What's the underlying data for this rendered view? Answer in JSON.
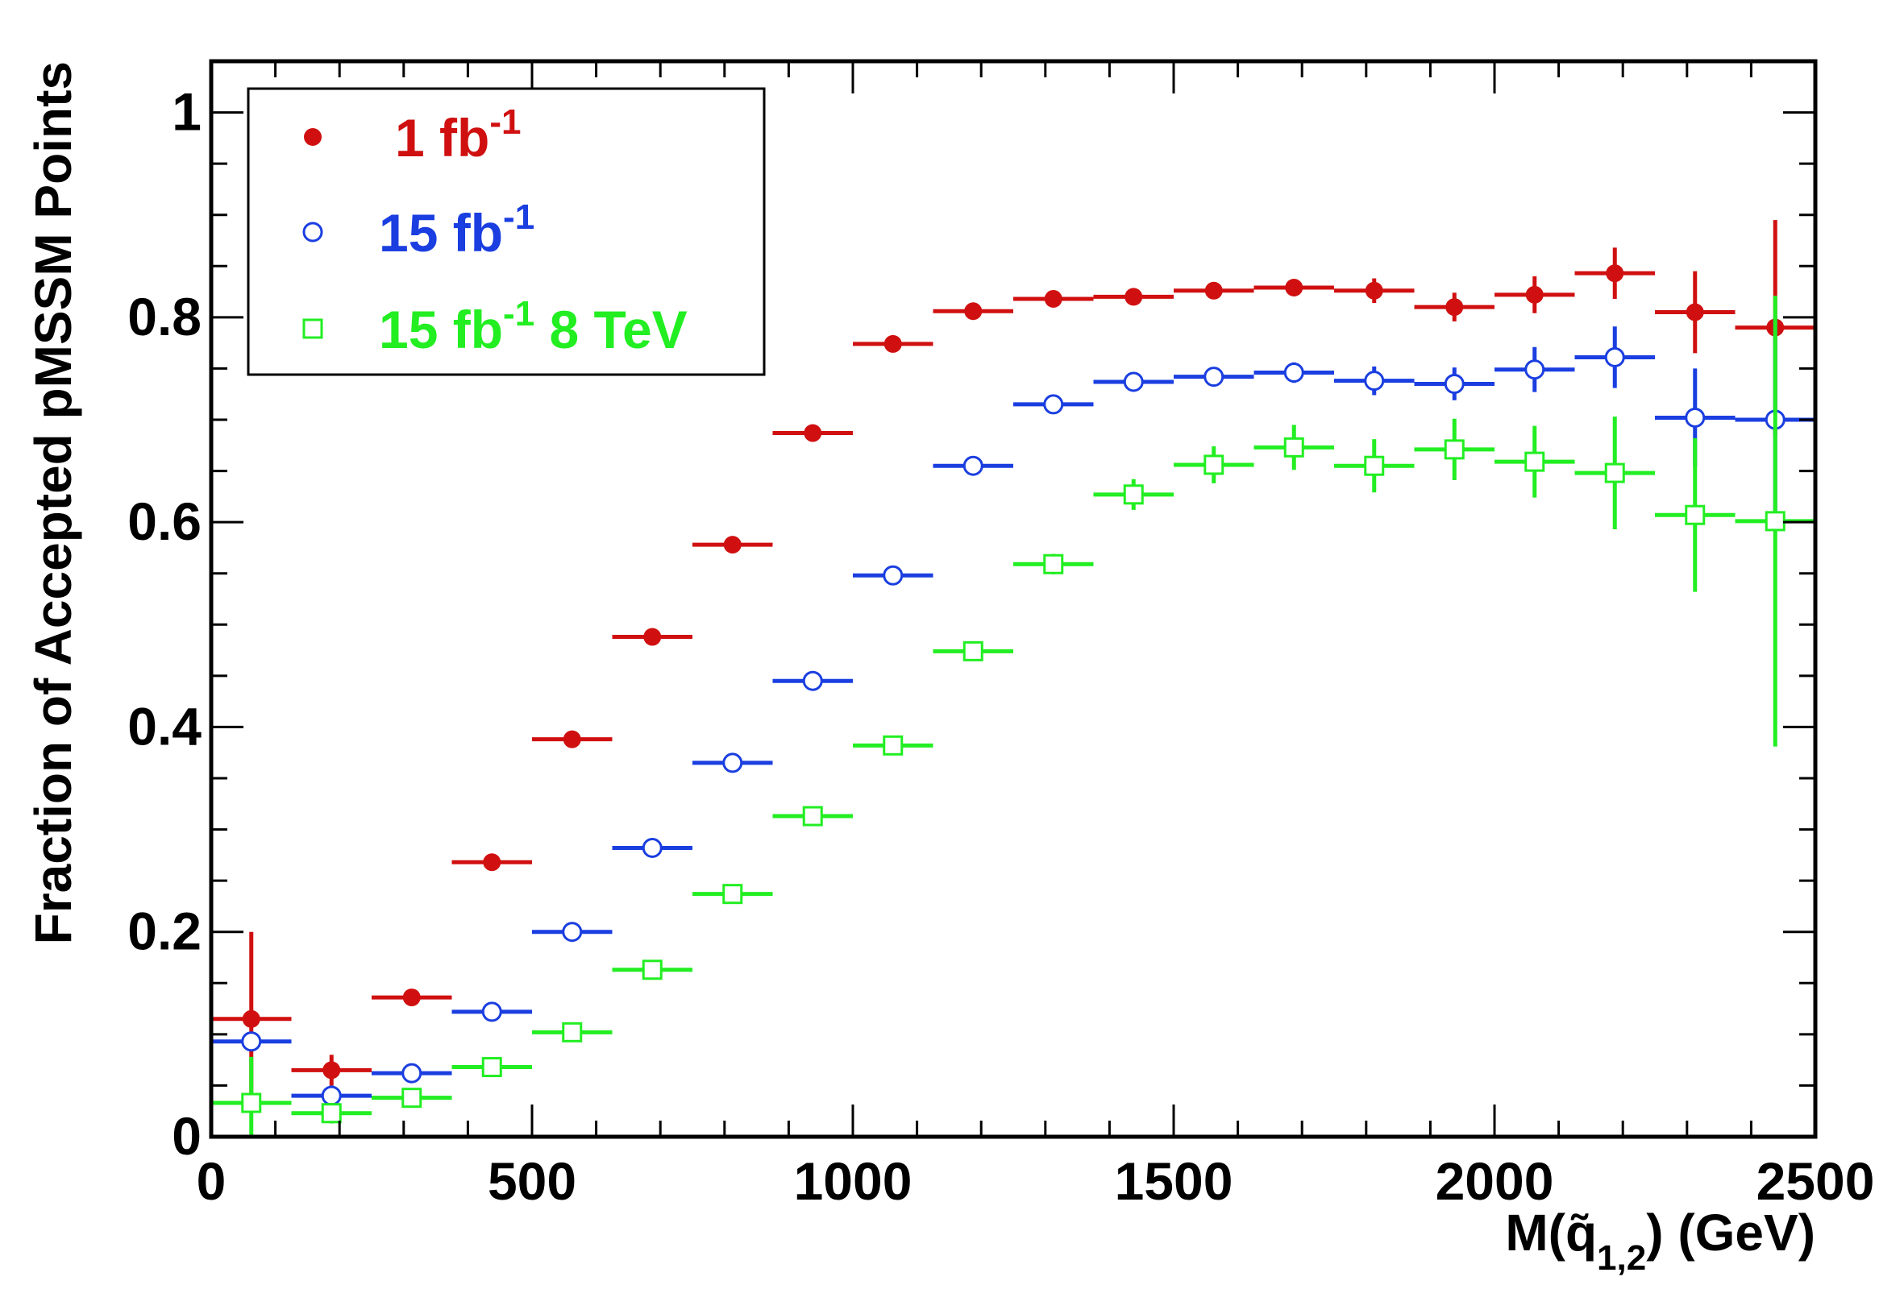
{
  "chart_data": {
    "type": "scatter",
    "title": "",
    "xlabel": "M(q̃",
    "xlabel_sub": "1,2",
    "xlabel_tail": ") (GeV)",
    "ylabel": "Fraction of Accepted pMSSM Points",
    "xlim": [
      0,
      2500
    ],
    "ylim": [
      0,
      1.05
    ],
    "x_ticks": [
      0,
      500,
      1000,
      1500,
      2000,
      2500
    ],
    "x_tick_labels": [
      "0",
      "500",
      "1000",
      "1500",
      "2000",
      "2500"
    ],
    "y_ticks": [
      0,
      0.2,
      0.4,
      0.6,
      0.8,
      1
    ],
    "y_tick_labels": [
      "0",
      "0.2",
      "0.4",
      "0.6",
      "0.8",
      "1"
    ],
    "grid": false,
    "legend_position": "top-left",
    "bin_half_width": 62.5,
    "x": [
      62.5,
      187.5,
      312.5,
      437.5,
      562.5,
      687.5,
      812.5,
      937.5,
      1062.5,
      1187.5,
      1312.5,
      1437.5,
      1562.5,
      1687.5,
      1812.5,
      1937.5,
      2062.5,
      2187.5,
      2312.5,
      2437.5
    ],
    "series": [
      {
        "name": "1 fb",
        "name_sup": "-1",
        "marker": "filled-circle",
        "color": "#d01010",
        "values": [
          0.115,
          0.065,
          0.136,
          0.268,
          0.388,
          0.488,
          0.578,
          0.687,
          0.774,
          0.806,
          0.818,
          0.82,
          0.826,
          0.829,
          0.826,
          0.81,
          0.822,
          0.843,
          0.805,
          0.79
        ],
        "errors": [
          0.085,
          0.015,
          0.006,
          0.005,
          0.004,
          0.004,
          0.004,
          0.004,
          0.004,
          0.005,
          0.006,
          0.006,
          0.007,
          0.008,
          0.012,
          0.014,
          0.018,
          0.025,
          0.04,
          0.105
        ]
      },
      {
        "name": "15 fb",
        "name_sup": "-1",
        "marker": "open-circle",
        "color": "#1a3ee0",
        "values": [
          0.093,
          0.04,
          0.062,
          0.122,
          0.2,
          0.282,
          0.365,
          0.445,
          0.548,
          0.655,
          0.715,
          0.737,
          0.742,
          0.746,
          0.738,
          0.735,
          0.749,
          0.761,
          0.702,
          0.7
        ],
        "errors": [
          0.006,
          0.01,
          0.005,
          0.004,
          0.004,
          0.004,
          0.004,
          0.005,
          0.005,
          0.006,
          0.007,
          0.008,
          0.009,
          0.01,
          0.014,
          0.016,
          0.022,
          0.03,
          0.048,
          0.1
        ]
      },
      {
        "name": "15 fb",
        "name_sup": "-1",
        "name_tail": " 8 TeV",
        "marker": "open-square",
        "color": "#22ee22",
        "values": [
          0.033,
          0.023,
          0.038,
          0.068,
          0.102,
          0.163,
          0.237,
          0.313,
          0.382,
          0.474,
          0.559,
          0.627,
          0.656,
          0.673,
          0.655,
          0.671,
          0.659,
          0.648,
          0.607,
          0.601
        ],
        "errors": [
          0.045,
          0.01,
          0.005,
          0.005,
          0.004,
          0.005,
          0.005,
          0.006,
          0.007,
          0.008,
          0.01,
          0.015,
          0.018,
          0.022,
          0.026,
          0.03,
          0.035,
          0.055,
          0.075,
          0.22
        ]
      }
    ]
  }
}
